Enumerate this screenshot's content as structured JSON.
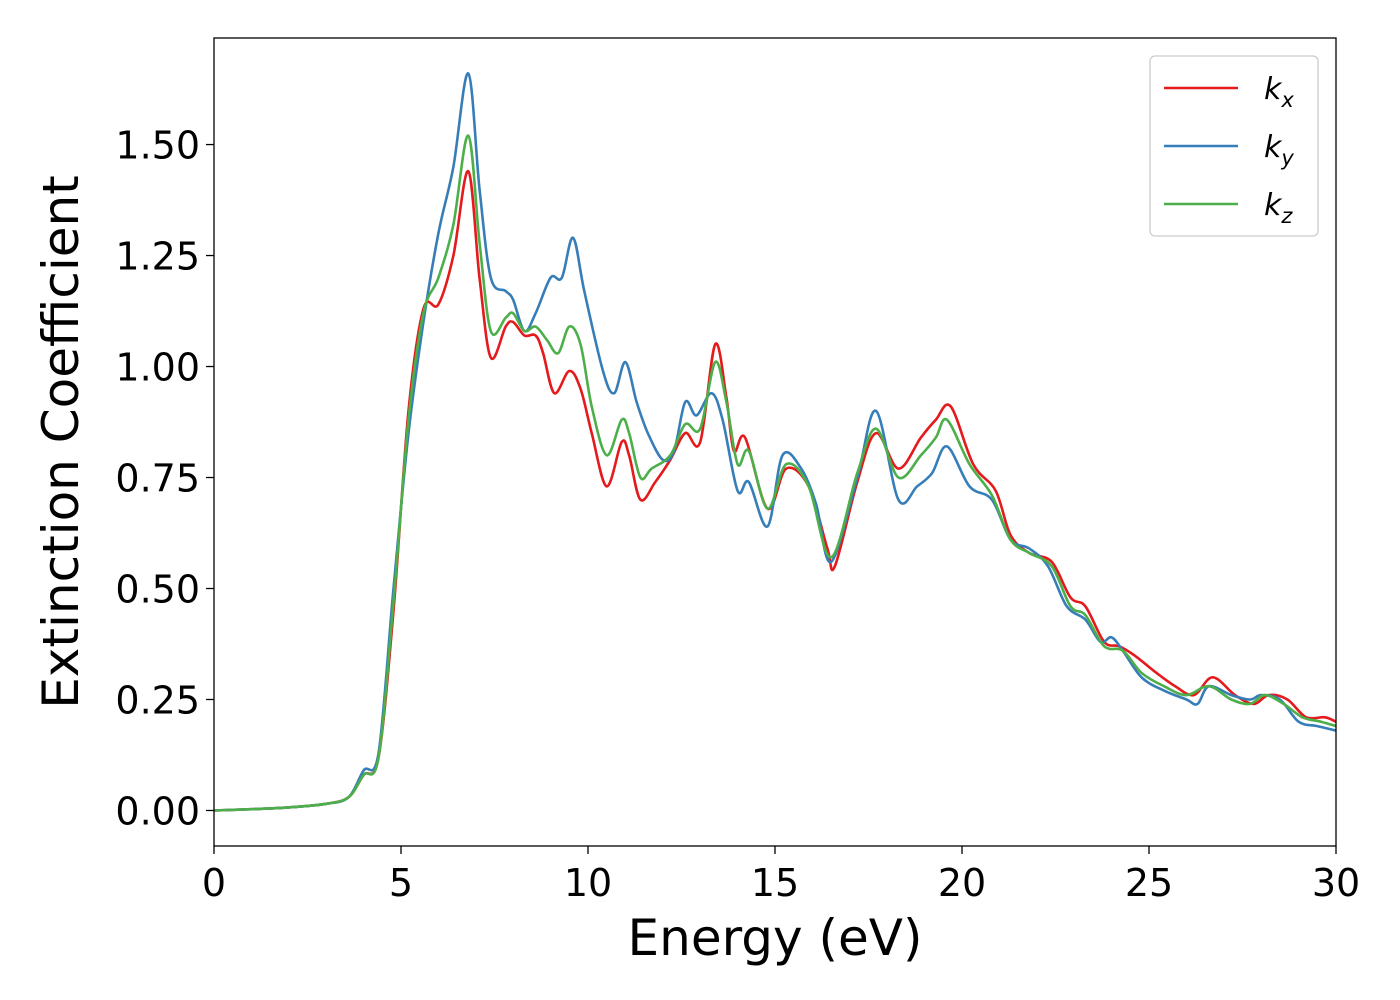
{
  "chart_data": {
    "type": "line",
    "xlabel": "Energy (eV)",
    "ylabel": "Extinction Coefficient",
    "xlim": [
      0,
      30
    ],
    "ylim": [
      -0.08,
      1.74
    ],
    "xticks": [
      0,
      5,
      10,
      15,
      20,
      25,
      30
    ],
    "xtick_labels": [
      "0",
      "5",
      "10",
      "15",
      "20",
      "25",
      "30"
    ],
    "yticks": [
      0.0,
      0.25,
      0.5,
      0.75,
      1.0,
      1.25,
      1.5
    ],
    "ytick_labels": [
      "0.00",
      "0.25",
      "0.50",
      "0.75",
      "1.00",
      "1.25",
      "1.50"
    ],
    "grid": false,
    "legend_position": "top-right",
    "series": [
      {
        "name_base": "k",
        "name_sub": "x",
        "color": "#e41a1c",
        "points": [
          [
            0,
            0
          ],
          [
            1,
            0.003
          ],
          [
            2,
            0.007
          ],
          [
            3,
            0.015
          ],
          [
            3.6,
            0.03
          ],
          [
            4.0,
            0.08
          ],
          [
            4.4,
            0.12
          ],
          [
            4.8,
            0.45
          ],
          [
            5.2,
            0.9
          ],
          [
            5.6,
            1.13
          ],
          [
            6.0,
            1.14
          ],
          [
            6.4,
            1.25
          ],
          [
            6.8,
            1.44
          ],
          [
            7.1,
            1.2
          ],
          [
            7.4,
            1.02
          ],
          [
            7.8,
            1.09
          ],
          [
            8.0,
            1.1
          ],
          [
            8.3,
            1.07
          ],
          [
            8.6,
            1.07
          ],
          [
            8.8,
            1.03
          ],
          [
            9.1,
            0.94
          ],
          [
            9.5,
            0.99
          ],
          [
            9.8,
            0.95
          ],
          [
            10.1,
            0.85
          ],
          [
            10.5,
            0.73
          ],
          [
            10.9,
            0.83
          ],
          [
            11.1,
            0.8
          ],
          [
            11.4,
            0.7
          ],
          [
            11.8,
            0.74
          ],
          [
            12.2,
            0.79
          ],
          [
            12.6,
            0.85
          ],
          [
            13.0,
            0.83
          ],
          [
            13.4,
            1.05
          ],
          [
            13.7,
            0.93
          ],
          [
            13.9,
            0.81
          ],
          [
            14.2,
            0.84
          ],
          [
            14.8,
            0.68
          ],
          [
            15.3,
            0.77
          ],
          [
            15.9,
            0.73
          ],
          [
            16.4,
            0.59
          ],
          [
            16.6,
            0.55
          ],
          [
            17.2,
            0.74
          ],
          [
            17.7,
            0.85
          ],
          [
            18.3,
            0.77
          ],
          [
            18.9,
            0.84
          ],
          [
            19.3,
            0.88
          ],
          [
            19.7,
            0.91
          ],
          [
            20.3,
            0.78
          ],
          [
            20.9,
            0.72
          ],
          [
            21.3,
            0.62
          ],
          [
            21.8,
            0.58
          ],
          [
            22.4,
            0.56
          ],
          [
            22.9,
            0.48
          ],
          [
            23.3,
            0.46
          ],
          [
            23.8,
            0.38
          ],
          [
            24.2,
            0.37
          ],
          [
            24.6,
            0.35
          ],
          [
            25.2,
            0.31
          ],
          [
            25.7,
            0.28
          ],
          [
            26.2,
            0.26
          ],
          [
            26.7,
            0.3
          ],
          [
            27.3,
            0.26
          ],
          [
            27.8,
            0.24
          ],
          [
            28.2,
            0.26
          ],
          [
            28.7,
            0.25
          ],
          [
            29.2,
            0.21
          ],
          [
            29.7,
            0.21
          ],
          [
            30,
            0.2
          ]
        ]
      },
      {
        "name_base": "k",
        "name_sub": "y",
        "color": "#377eb8",
        "points": [
          [
            0,
            0
          ],
          [
            1,
            0.003
          ],
          [
            2,
            0.007
          ],
          [
            3,
            0.015
          ],
          [
            3.6,
            0.03
          ],
          [
            4.0,
            0.09
          ],
          [
            4.4,
            0.13
          ],
          [
            4.8,
            0.5
          ],
          [
            5.2,
            0.85
          ],
          [
            5.6,
            1.1
          ],
          [
            6.0,
            1.3
          ],
          [
            6.4,
            1.45
          ],
          [
            6.8,
            1.66
          ],
          [
            7.1,
            1.4
          ],
          [
            7.4,
            1.2
          ],
          [
            7.8,
            1.17
          ],
          [
            8.0,
            1.15
          ],
          [
            8.3,
            1.08
          ],
          [
            8.6,
            1.12
          ],
          [
            9.0,
            1.2
          ],
          [
            9.3,
            1.2
          ],
          [
            9.6,
            1.29
          ],
          [
            9.9,
            1.17
          ],
          [
            10.4,
            0.99
          ],
          [
            10.7,
            0.94
          ],
          [
            11.0,
            1.01
          ],
          [
            11.3,
            0.92
          ],
          [
            11.6,
            0.85
          ],
          [
            12.0,
            0.79
          ],
          [
            12.3,
            0.81
          ],
          [
            12.6,
            0.92
          ],
          [
            12.9,
            0.89
          ],
          [
            13.3,
            0.94
          ],
          [
            13.6,
            0.88
          ],
          [
            14.0,
            0.72
          ],
          [
            14.3,
            0.74
          ],
          [
            14.8,
            0.64
          ],
          [
            15.2,
            0.8
          ],
          [
            15.7,
            0.77
          ],
          [
            16.1,
            0.69
          ],
          [
            16.5,
            0.56
          ],
          [
            17.2,
            0.75
          ],
          [
            17.7,
            0.9
          ],
          [
            18.3,
            0.7
          ],
          [
            18.8,
            0.73
          ],
          [
            19.2,
            0.76
          ],
          [
            19.6,
            0.82
          ],
          [
            20.2,
            0.73
          ],
          [
            20.8,
            0.7
          ],
          [
            21.3,
            0.61
          ],
          [
            21.8,
            0.59
          ],
          [
            22.3,
            0.55
          ],
          [
            22.8,
            0.46
          ],
          [
            23.3,
            0.43
          ],
          [
            23.7,
            0.38
          ],
          [
            24.0,
            0.39
          ],
          [
            24.3,
            0.36
          ],
          [
            24.8,
            0.3
          ],
          [
            25.4,
            0.27
          ],
          [
            26.0,
            0.25
          ],
          [
            26.3,
            0.24
          ],
          [
            26.6,
            0.28
          ],
          [
            27.2,
            0.26
          ],
          [
            27.7,
            0.25
          ],
          [
            28.0,
            0.26
          ],
          [
            28.5,
            0.25
          ],
          [
            29.0,
            0.2
          ],
          [
            29.5,
            0.19
          ],
          [
            30,
            0.18
          ]
        ]
      },
      {
        "name_base": "k",
        "name_sub": "z",
        "color": "#4daf4a",
        "points": [
          [
            0,
            0
          ],
          [
            1,
            0.003
          ],
          [
            2,
            0.007
          ],
          [
            3,
            0.015
          ],
          [
            3.6,
            0.03
          ],
          [
            4.0,
            0.08
          ],
          [
            4.4,
            0.12
          ],
          [
            4.8,
            0.47
          ],
          [
            5.2,
            0.88
          ],
          [
            5.6,
            1.12
          ],
          [
            6.0,
            1.2
          ],
          [
            6.4,
            1.32
          ],
          [
            6.8,
            1.52
          ],
          [
            7.1,
            1.28
          ],
          [
            7.4,
            1.08
          ],
          [
            7.8,
            1.11
          ],
          [
            8.0,
            1.12
          ],
          [
            8.3,
            1.08
          ],
          [
            8.6,
            1.09
          ],
          [
            8.9,
            1.06
          ],
          [
            9.2,
            1.03
          ],
          [
            9.5,
            1.09
          ],
          [
            9.8,
            1.05
          ],
          [
            10.1,
            0.91
          ],
          [
            10.5,
            0.8
          ],
          [
            10.9,
            0.88
          ],
          [
            11.1,
            0.85
          ],
          [
            11.4,
            0.75
          ],
          [
            11.7,
            0.77
          ],
          [
            12.2,
            0.8
          ],
          [
            12.6,
            0.87
          ],
          [
            13.0,
            0.86
          ],
          [
            13.4,
            1.01
          ],
          [
            13.7,
            0.92
          ],
          [
            14.0,
            0.78
          ],
          [
            14.3,
            0.81
          ],
          [
            14.8,
            0.68
          ],
          [
            15.3,
            0.78
          ],
          [
            15.9,
            0.73
          ],
          [
            16.5,
            0.57
          ],
          [
            17.2,
            0.76
          ],
          [
            17.7,
            0.86
          ],
          [
            18.3,
            0.75
          ],
          [
            18.9,
            0.8
          ],
          [
            19.3,
            0.84
          ],
          [
            19.6,
            0.88
          ],
          [
            20.2,
            0.78
          ],
          [
            20.8,
            0.71
          ],
          [
            21.3,
            0.61
          ],
          [
            21.8,
            0.58
          ],
          [
            22.4,
            0.55
          ],
          [
            22.9,
            0.46
          ],
          [
            23.3,
            0.44
          ],
          [
            23.8,
            0.37
          ],
          [
            24.3,
            0.36
          ],
          [
            24.8,
            0.31
          ],
          [
            25.4,
            0.28
          ],
          [
            26.0,
            0.26
          ],
          [
            26.6,
            0.28
          ],
          [
            27.2,
            0.25
          ],
          [
            27.7,
            0.24
          ],
          [
            28.1,
            0.26
          ],
          [
            28.6,
            0.24
          ],
          [
            29.1,
            0.21
          ],
          [
            29.6,
            0.2
          ],
          [
            30,
            0.19
          ]
        ]
      }
    ]
  }
}
